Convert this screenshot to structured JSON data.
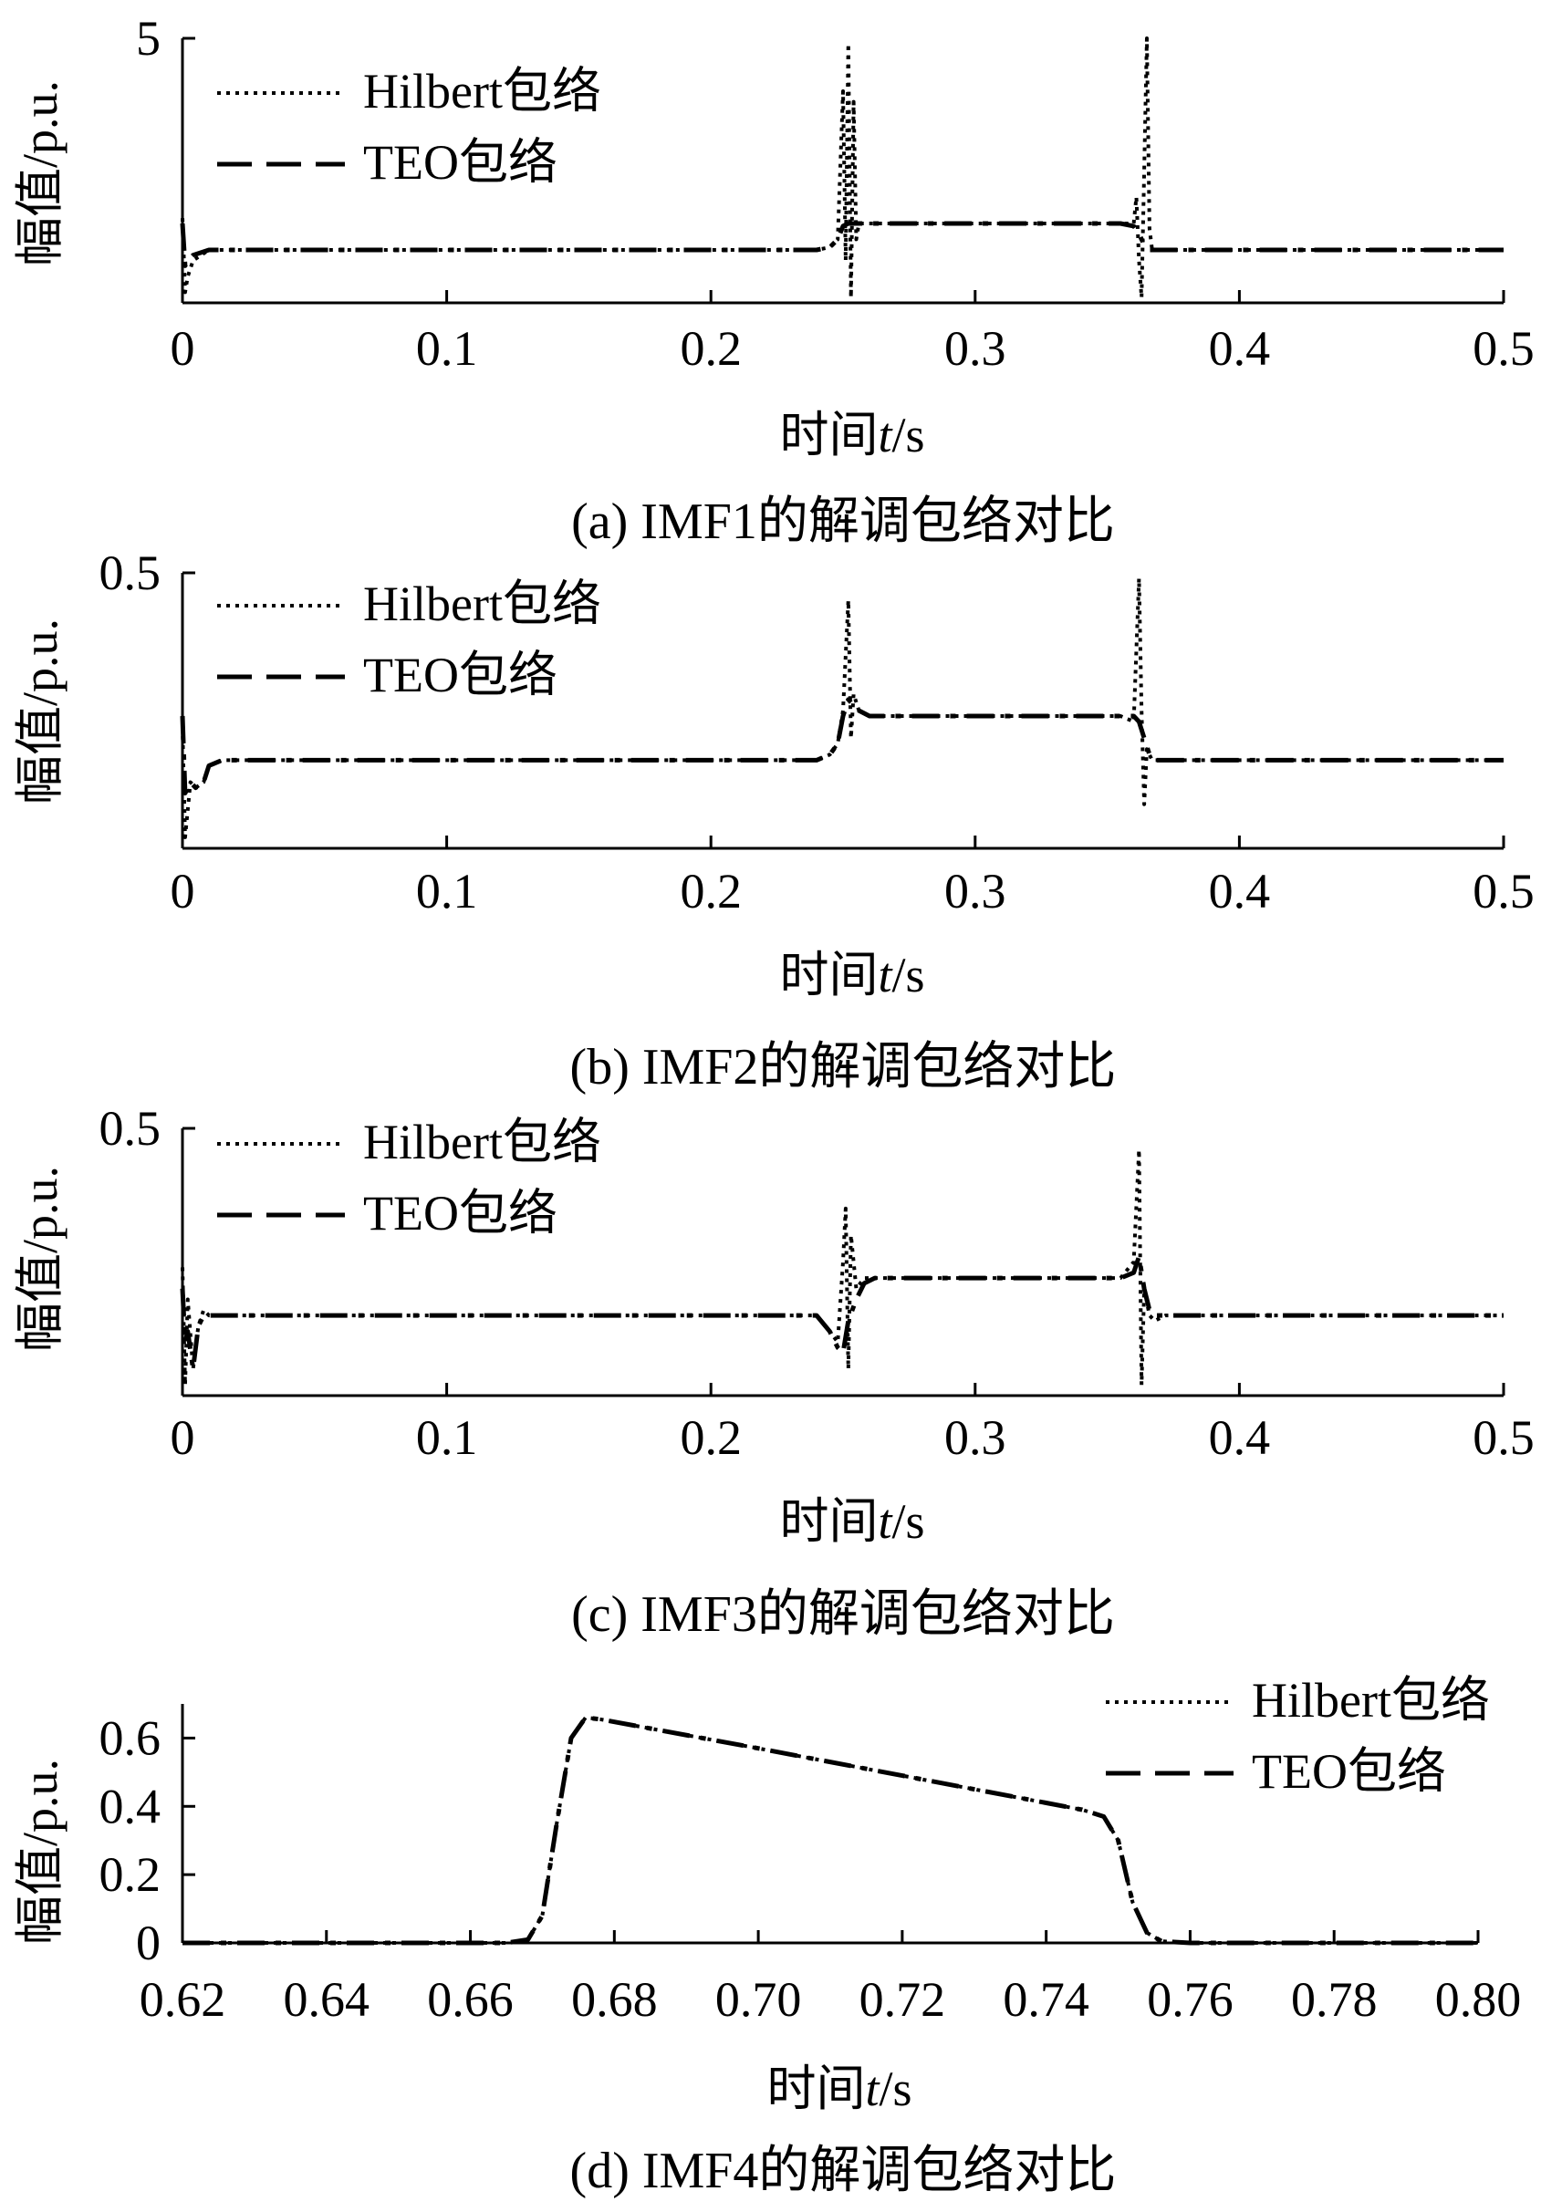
{
  "figure": {
    "panels": [
      {
        "caption": "(a) IMF1的解调包络对比",
        "ylabel": "幅值/p.u.",
        "xlabel_prefix": "时间",
        "xlabel_var": "t",
        "xlabel_suffix": "/s",
        "legend": [
          "Hilbert包络",
          "TEO包络"
        ]
      },
      {
        "caption": "(b) IMF2的解调包络对比",
        "ylabel": "幅值/p.u.",
        "xlabel_prefix": "时间",
        "xlabel_var": "t",
        "xlabel_suffix": "/s",
        "legend": [
          "Hilbert包络",
          "TEO包络"
        ]
      },
      {
        "caption": "(c) IMF3的解调包络对比",
        "ylabel": "幅值/p.u.",
        "xlabel_prefix": "时间",
        "xlabel_var": "t",
        "xlabel_suffix": "/s",
        "legend": [
          "Hilbert包络",
          "TEO包络"
        ]
      },
      {
        "caption": "(d) IMF4的解调包络对比",
        "ylabel": "幅值/p.u.",
        "xlabel_prefix": "时间",
        "xlabel_var": "t",
        "xlabel_suffix": "/s",
        "legend": [
          "Hilbert包络",
          "TEO包络"
        ]
      }
    ]
  },
  "chart_data": [
    {
      "type": "line",
      "xlim": [
        0,
        0.5
      ],
      "ylim": [
        0,
        5
      ],
      "x_ticks": [
        "0",
        "0.1",
        "0.2",
        "0.3",
        "0.4",
        "0.5"
      ],
      "y_ticks": [
        "5"
      ],
      "legend_position": "top-left",
      "series": [
        {
          "name": "Hilbert包络",
          "style": "dotted",
          "x": [
            0,
            0.001,
            0.002,
            0.004,
            0.007,
            0.01,
            0.015,
            0.02,
            0.1,
            0.2,
            0.24,
            0.245,
            0.248,
            0.25,
            0.251,
            0.252,
            0.253,
            0.254,
            0.255,
            0.256,
            0.258,
            0.262,
            0.3,
            0.355,
            0.36,
            0.361,
            0.362,
            0.363,
            0.364,
            0.365,
            0.366,
            0.367,
            0.369,
            0.372,
            0.38,
            0.45,
            0.5
          ],
          "y": [
            1.6,
            0.2,
            0.5,
            0.8,
            0.9,
            1.0,
            1.0,
            1.0,
            1.0,
            1.0,
            1.0,
            1.05,
            1.2,
            4.0,
            0.8,
            4.9,
            0.1,
            3.8,
            1.2,
            1.5,
            1.5,
            1.5,
            1.5,
            1.5,
            1.5,
            2.0,
            0.8,
            0.1,
            2.5,
            5.0,
            1.4,
            1.0,
            1.0,
            1.0,
            1.0,
            1.0,
            1.0
          ]
        },
        {
          "name": "TEO包络",
          "style": "dashdot",
          "x": [
            0,
            0.001,
            0.002,
            0.004,
            0.007,
            0.01,
            0.015,
            0.02,
            0.1,
            0.2,
            0.24,
            0.245,
            0.248,
            0.25,
            0.252,
            0.254,
            0.256,
            0.26,
            0.3,
            0.355,
            0.36,
            0.362,
            0.364,
            0.366,
            0.368,
            0.372,
            0.38,
            0.45,
            0.5
          ],
          "y": [
            1.5,
            0.7,
            0.8,
            0.9,
            0.95,
            1.0,
            1.0,
            1.0,
            1.0,
            1.0,
            1.0,
            1.05,
            1.2,
            1.45,
            1.5,
            1.5,
            1.5,
            1.5,
            1.5,
            1.5,
            1.45,
            1.3,
            1.1,
            1.0,
            1.0,
            1.0,
            1.0,
            1.0,
            1.0
          ]
        }
      ]
    },
    {
      "type": "line",
      "xlim": [
        0,
        0.5
      ],
      "ylim": [
        0,
        0.5
      ],
      "x_ticks": [
        "0",
        "0.1",
        "0.2",
        "0.3",
        "0.4",
        "0.5"
      ],
      "y_ticks": [
        "0.5"
      ],
      "legend_position": "top-left",
      "series": [
        {
          "name": "Hilbert包络",
          "style": "dotted",
          "x": [
            0,
            0.001,
            0.003,
            0.005,
            0.008,
            0.01,
            0.015,
            0.02,
            0.1,
            0.2,
            0.24,
            0.245,
            0.248,
            0.25,
            0.252,
            0.253,
            0.254,
            0.256,
            0.26,
            0.265,
            0.3,
            0.355,
            0.36,
            0.362,
            0.363,
            0.364,
            0.365,
            0.367,
            0.37,
            0.38,
            0.45,
            0.5
          ],
          "y": [
            0.22,
            0.02,
            0.12,
            0.11,
            0.12,
            0.15,
            0.16,
            0.16,
            0.16,
            0.16,
            0.16,
            0.17,
            0.19,
            0.25,
            0.45,
            0.2,
            0.28,
            0.25,
            0.24,
            0.24,
            0.24,
            0.24,
            0.23,
            0.49,
            0.25,
            0.08,
            0.18,
            0.16,
            0.16,
            0.16,
            0.16,
            0.16
          ]
        },
        {
          "name": "TEO包络",
          "style": "dashdot",
          "x": [
            0,
            0.001,
            0.003,
            0.005,
            0.008,
            0.01,
            0.015,
            0.02,
            0.1,
            0.2,
            0.24,
            0.245,
            0.248,
            0.25,
            0.252,
            0.254,
            0.256,
            0.26,
            0.265,
            0.3,
            0.355,
            0.36,
            0.362,
            0.364,
            0.366,
            0.368,
            0.372,
            0.38,
            0.45,
            0.5
          ],
          "y": [
            0.24,
            0.1,
            0.12,
            0.11,
            0.12,
            0.15,
            0.16,
            0.16,
            0.16,
            0.16,
            0.16,
            0.17,
            0.19,
            0.24,
            0.27,
            0.26,
            0.25,
            0.24,
            0.24,
            0.24,
            0.24,
            0.24,
            0.23,
            0.2,
            0.17,
            0.16,
            0.16,
            0.16,
            0.16,
            0.16
          ]
        }
      ]
    },
    {
      "type": "line",
      "xlim": [
        0,
        0.5
      ],
      "ylim": [
        0,
        0.5
      ],
      "x_ticks": [
        "0",
        "0.1",
        "0.2",
        "0.3",
        "0.4",
        "0.5"
      ],
      "y_ticks": [
        "0.5"
      ],
      "legend_position": "top-left",
      "series": [
        {
          "name": "Hilbert包络",
          "style": "dotted",
          "x": [
            0,
            0.001,
            0.002,
            0.004,
            0.006,
            0.008,
            0.01,
            0.015,
            0.02,
            0.1,
            0.2,
            0.24,
            0.245,
            0.248,
            0.25,
            0.251,
            0.252,
            0.253,
            0.255,
            0.258,
            0.262,
            0.265,
            0.3,
            0.355,
            0.36,
            0.362,
            0.363,
            0.364,
            0.366,
            0.368,
            0.372,
            0.38,
            0.45,
            0.5
          ],
          "y": [
            0.24,
            0.02,
            0.18,
            0.05,
            0.13,
            0.16,
            0.15,
            0.15,
            0.15,
            0.15,
            0.15,
            0.15,
            0.12,
            0.1,
            0.25,
            0.35,
            0.05,
            0.3,
            0.2,
            0.22,
            0.22,
            0.22,
            0.22,
            0.22,
            0.25,
            0.46,
            0.02,
            0.2,
            0.15,
            0.14,
            0.15,
            0.15,
            0.15,
            0.15
          ]
        },
        {
          "name": "TEO包络",
          "style": "dashdot",
          "x": [
            0,
            0.001,
            0.002,
            0.004,
            0.006,
            0.008,
            0.01,
            0.015,
            0.02,
            0.1,
            0.2,
            0.24,
            0.245,
            0.248,
            0.25,
            0.252,
            0.255,
            0.258,
            0.262,
            0.265,
            0.3,
            0.355,
            0.36,
            0.362,
            0.364,
            0.366,
            0.368,
            0.372,
            0.38,
            0.45,
            0.5
          ],
          "y": [
            0.2,
            0.1,
            0.12,
            0.05,
            0.13,
            0.15,
            0.15,
            0.15,
            0.15,
            0.15,
            0.15,
            0.15,
            0.12,
            0.09,
            0.08,
            0.14,
            0.18,
            0.21,
            0.22,
            0.22,
            0.22,
            0.22,
            0.23,
            0.26,
            0.2,
            0.16,
            0.15,
            0.15,
            0.15,
            0.15,
            0.15
          ]
        }
      ]
    },
    {
      "type": "line",
      "xlim": [
        0.62,
        0.8
      ],
      "ylim": [
        0,
        0.7
      ],
      "x_ticks": [
        "0.62",
        "0.64",
        "0.66",
        "0.68",
        "0.70",
        "0.72",
        "0.74",
        "0.76",
        "0.78",
        "0.80"
      ],
      "y_ticks": [
        "0",
        "0.2",
        "0.4",
        "0.6"
      ],
      "legend_position": "top-right",
      "series": [
        {
          "name": "Hilbert包络",
          "style": "dotted",
          "x": [
            0.62,
            0.665,
            0.668,
            0.67,
            0.672,
            0.674,
            0.676,
            0.678,
            0.7,
            0.72,
            0.74,
            0.745,
            0.748,
            0.75,
            0.752,
            0.754,
            0.756,
            0.76,
            0.8
          ],
          "y": [
            0,
            0,
            0.01,
            0.08,
            0.35,
            0.6,
            0.66,
            0.655,
            0.57,
            0.49,
            0.41,
            0.39,
            0.37,
            0.3,
            0.12,
            0.03,
            0.005,
            0,
            0
          ]
        },
        {
          "name": "TEO包络",
          "style": "dashdot",
          "x": [
            0.62,
            0.665,
            0.668,
            0.67,
            0.672,
            0.674,
            0.676,
            0.678,
            0.7,
            0.72,
            0.74,
            0.745,
            0.748,
            0.75,
            0.752,
            0.754,
            0.756,
            0.76,
            0.8
          ],
          "y": [
            0,
            0,
            0.01,
            0.08,
            0.35,
            0.6,
            0.66,
            0.655,
            0.57,
            0.49,
            0.41,
            0.39,
            0.37,
            0.3,
            0.12,
            0.03,
            0.005,
            0,
            0
          ]
        }
      ]
    }
  ]
}
